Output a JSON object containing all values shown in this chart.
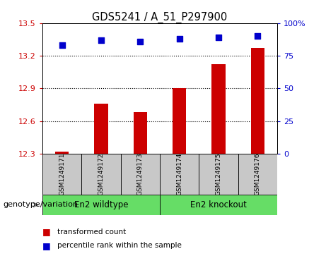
{
  "title": "GDS5241 / A_51_P297900",
  "samples": [
    "GSM1249171",
    "GSM1249172",
    "GSM1249173",
    "GSM1249174",
    "GSM1249175",
    "GSM1249176"
  ],
  "bar_values": [
    12.32,
    12.76,
    12.68,
    12.9,
    13.12,
    13.27
  ],
  "percentile_values": [
    83,
    87,
    86,
    88,
    89,
    90
  ],
  "group1_label": "En2 wildtype",
  "group2_label": "En2 knockout",
  "group_color": "#66DD66",
  "sample_box_color": "#C8C8C8",
  "ylim_left": [
    12.3,
    13.5
  ],
  "ylim_right": [
    0,
    100
  ],
  "yticks_left": [
    12.3,
    12.6,
    12.9,
    13.2,
    13.5
  ],
  "yticks_right": [
    0,
    25,
    50,
    75,
    100
  ],
  "bar_color": "#CC0000",
  "dot_color": "#0000CC",
  "left_label_color": "#CC0000",
  "right_label_color": "#0000CC",
  "genotype_label": "genotype/variation",
  "legend_bar_label": "transformed count",
  "legend_dot_label": "percentile rank within the sample",
  "bar_width": 0.35,
  "dot_size": 35,
  "grid_ticks": [
    12.6,
    12.9,
    13.2
  ]
}
